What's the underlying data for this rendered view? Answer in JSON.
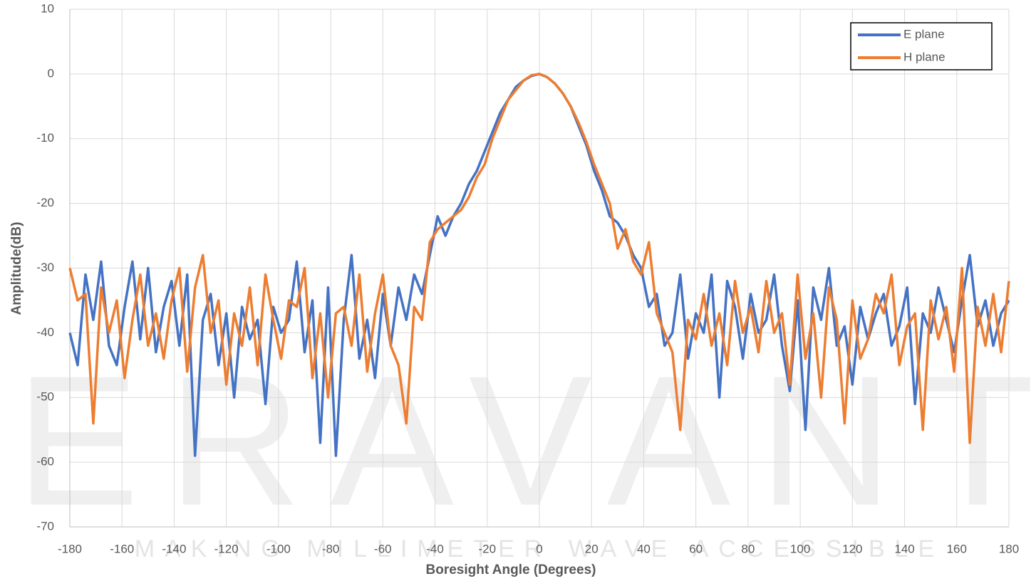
{
  "chart_data": {
    "type": "line",
    "watermark": "ERAVANT",
    "watermark_tagline": "MAKING MILLIMETER WAVE ACCESSIBLE",
    "x_label": "Boresight Angle (Degrees)",
    "y_label": "Amplitude(dB)",
    "xlim": [
      -180,
      180
    ],
    "ylim": [
      -70,
      10
    ],
    "xticks": [
      -180,
      -160,
      -140,
      -120,
      -100,
      -80,
      -60,
      -40,
      -20,
      0,
      20,
      40,
      60,
      80,
      100,
      120,
      140,
      160,
      180
    ],
    "yticks": [
      -70,
      -60,
      -50,
      -40,
      -30,
      -20,
      -10,
      0,
      10
    ],
    "grid": true,
    "legend": "upper right",
    "x": [
      -180,
      -177,
      -174,
      -171,
      -168,
      -165,
      -162,
      -159,
      -156,
      -153,
      -150,
      -147,
      -144,
      -141,
      -138,
      -135,
      -132,
      -129,
      -126,
      -123,
      -120,
      -117,
      -114,
      -111,
      -108,
      -105,
      -102,
      -99,
      -96,
      -93,
      -90,
      -87,
      -84,
      -81,
      -78,
      -75,
      -72,
      -69,
      -66,
      -63,
      -60,
      -57,
      -54,
      -51,
      -48,
      -45,
      -42,
      -39,
      -36,
      -33,
      -30,
      -27,
      -24,
      -21,
      -18,
      -15,
      -12,
      -9,
      -6,
      -3,
      0,
      3,
      6,
      9,
      12,
      15,
      18,
      21,
      24,
      27,
      30,
      33,
      36,
      39,
      42,
      45,
      48,
      51,
      54,
      57,
      60,
      63,
      66,
      69,
      72,
      75,
      78,
      81,
      84,
      87,
      90,
      93,
      96,
      99,
      102,
      105,
      108,
      111,
      114,
      117,
      120,
      123,
      126,
      129,
      132,
      135,
      138,
      141,
      144,
      147,
      150,
      153,
      156,
      159,
      162,
      165,
      168,
      171,
      174,
      177,
      180
    ],
    "series": [
      {
        "name": "E plane",
        "color": "#4472c4",
        "values": [
          -40,
          -45,
          -31,
          -38,
          -29,
          -42,
          -45,
          -36,
          -29,
          -41,
          -30,
          -43,
          -36,
          -32,
          -42,
          -31,
          -59,
          -38,
          -34,
          -45,
          -37,
          -50,
          -36,
          -41,
          -38,
          -51,
          -36,
          -40,
          -38,
          -29,
          -43,
          -35,
          -57,
          -33,
          -59,
          -38,
          -28,
          -44,
          -38,
          -47,
          -34,
          -42,
          -33,
          -38,
          -31,
          -34,
          -28,
          -22,
          -25,
          -22,
          -20,
          -17,
          -15,
          -12,
          -9,
          -6,
          -4,
          -2,
          -1,
          -0.3,
          0,
          -0.5,
          -1.5,
          -3,
          -5,
          -8,
          -11,
          -15,
          -18,
          -22,
          -23,
          -25,
          -28,
          -30,
          -36,
          -34,
          -42,
          -40,
          -31,
          -44,
          -37,
          -40,
          -31,
          -50,
          -32,
          -36,
          -44,
          -34,
          -40,
          -38,
          -31,
          -42,
          -49,
          -35,
          -55,
          -33,
          -38,
          -30,
          -42,
          -39,
          -48,
          -36,
          -41,
          -37,
          -34,
          -42,
          -39,
          -33,
          -51,
          -37,
          -40,
          -33,
          -38,
          -43,
          -35,
          -28,
          -39,
          -35,
          -42,
          -37,
          -35
        ]
      },
      {
        "name": "H plane",
        "color": "#ed7d31",
        "values": [
          -30,
          -35,
          -34,
          -54,
          -33,
          -40,
          -35,
          -47,
          -38,
          -31,
          -42,
          -37,
          -44,
          -35,
          -30,
          -46,
          -33,
          -28,
          -40,
          -35,
          -48,
          -37,
          -42,
          -33,
          -45,
          -31,
          -38,
          -44,
          -35,
          -36,
          -30,
          -47,
          -37,
          -50,
          -37,
          -36,
          -42,
          -31,
          -46,
          -37,
          -31,
          -42,
          -45,
          -54,
          -36,
          -38,
          -26,
          -24,
          -23,
          -22,
          -21,
          -19,
          -16,
          -14,
          -10,
          -7,
          -4,
          -2.5,
          -1,
          -0.2,
          0,
          -0.5,
          -1.5,
          -3,
          -5,
          -7.5,
          -10.5,
          -14,
          -17,
          -20,
          -27,
          -24,
          -29,
          -31,
          -26,
          -37,
          -40,
          -43,
          -55,
          -38,
          -41,
          -34,
          -42,
          -37,
          -45,
          -32,
          -40,
          -36,
          -43,
          -32,
          -40,
          -37,
          -48,
          -31,
          -44,
          -37,
          -50,
          -33,
          -38,
          -54,
          -35,
          -44,
          -41,
          -34,
          -37,
          -31,
          -45,
          -39,
          -37,
          -55,
          -35,
          -41,
          -36,
          -46,
          -30,
          -57,
          -36,
          -42,
          -34,
          -43,
          -32
        ]
      }
    ]
  }
}
